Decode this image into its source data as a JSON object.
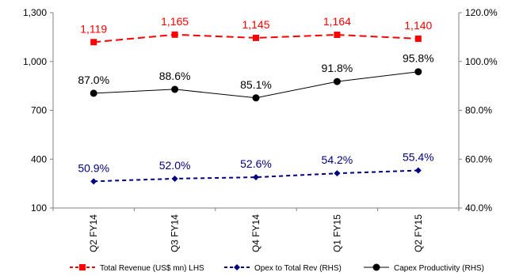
{
  "chart_data": {
    "type": "line",
    "categories": [
      "Q2 FY14",
      "Q3 FY14",
      "Q4 FY14",
      "Q1 FY15",
      "Q2 FY15"
    ],
    "y_left": {
      "ylim": [
        100,
        1300
      ],
      "ticks": [
        "100",
        "400",
        "700",
        "1,000",
        "1,300"
      ]
    },
    "y_right": {
      "ylim": [
        40,
        120
      ],
      "ticks": [
        "40.0%",
        "60.0%",
        "80.0%",
        "100.0%",
        "120.0%"
      ]
    },
    "series": [
      {
        "name": "Total Revenue (US$ mn) LHS",
        "axis": "left",
        "values": [
          1119,
          1165,
          1145,
          1164,
          1140
        ],
        "labels": [
          "1,119",
          "1,165",
          "1,145",
          "1,164",
          "1,140"
        ],
        "color": "#ff0000",
        "style": "dashed",
        "marker": "square"
      },
      {
        "name": "Opex to Total Rev (RHS)",
        "axis": "right",
        "values": [
          50.9,
          52.0,
          52.6,
          54.2,
          55.4
        ],
        "labels": [
          "50.9%",
          "52.0%",
          "52.6%",
          "54.2%",
          "55.4%"
        ],
        "color": "#000080",
        "style": "dashed",
        "marker": "diamond"
      },
      {
        "name": "Capex Productivity (RHS)",
        "axis": "right",
        "values": [
          87.0,
          88.6,
          85.1,
          91.8,
          95.8
        ],
        "labels": [
          "87.0%",
          "88.6%",
          "85.1%",
          "91.8%",
          "95.8%"
        ],
        "color": "#000000",
        "style": "solid",
        "marker": "circle"
      }
    ],
    "legend_position": "bottom",
    "grid": false
  }
}
